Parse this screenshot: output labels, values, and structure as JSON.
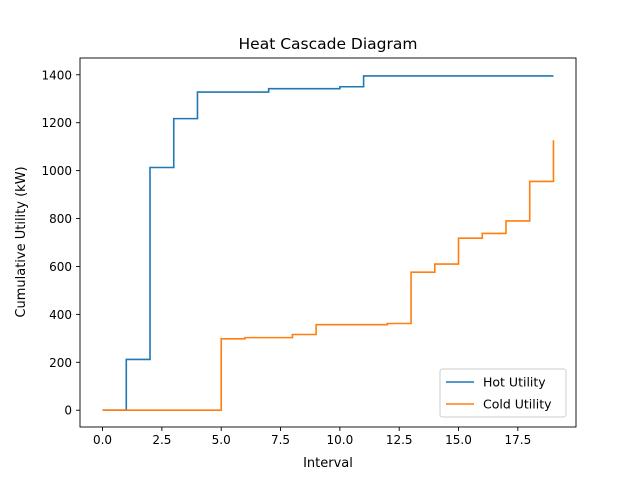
{
  "chart_data": {
    "type": "line",
    "step": "post",
    "title": "Heat Cascade Diagram",
    "xlabel": "Interval",
    "ylabel": "Cumulative Utility (kW)",
    "xlim": [
      -0.95,
      19.95
    ],
    "ylim": [
      -70,
      1470
    ],
    "xticks": [
      0,
      2.5,
      5,
      7.5,
      10,
      12.5,
      15,
      17.5
    ],
    "xtick_labels": [
      "0.0",
      "2.5",
      "5.0",
      "7.5",
      "10.0",
      "12.5",
      "15.0",
      "17.5"
    ],
    "yticks": [
      0,
      200,
      400,
      600,
      800,
      1000,
      1200,
      1400
    ],
    "ytick_labels": [
      "0",
      "200",
      "400",
      "600",
      "800",
      "1000",
      "1200",
      "1400"
    ],
    "grid": false,
    "legend_position": "lower-right",
    "x": [
      0,
      1,
      2,
      3,
      4,
      5,
      6,
      7,
      8,
      9,
      10,
      11,
      12,
      13,
      14,
      15,
      16,
      17,
      18,
      19
    ],
    "series": [
      {
        "name": "Hot Utility",
        "color": "#1f77b4",
        "values": [
          0,
          212,
          1013,
          1217,
          1328,
          1328,
          1328,
          1342,
          1342,
          1342,
          1350,
          1395,
          1395,
          1395,
          1395,
          1395,
          1395,
          1395,
          1395,
          1395
        ]
      },
      {
        "name": "Cold Utility",
        "color": "#ff7f0e",
        "values": [
          0,
          0,
          0,
          0,
          0,
          298,
          303,
          303,
          316,
          357,
          357,
          357,
          362,
          576,
          610,
          718,
          738,
          790,
          955,
          1127
        ]
      }
    ]
  }
}
